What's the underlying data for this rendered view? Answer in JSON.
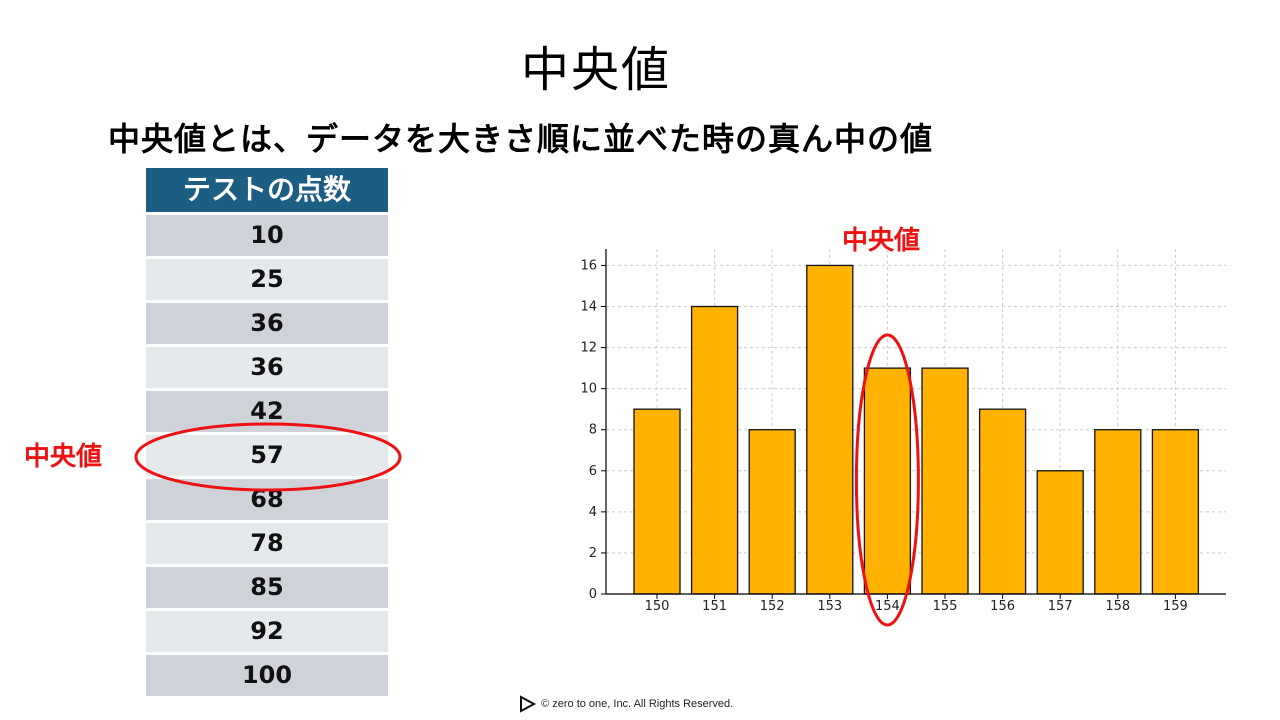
{
  "slide": {
    "title": "中央値",
    "subtitle": "中央値とは、データを大きさ順に並べた時の真ん中の値",
    "median_label": "中央値",
    "footer": "zero to one, Inc. All Rights Reserved.",
    "copyright_symbol": "©"
  },
  "table": {
    "header": "テストの点数",
    "rows": [
      "10",
      "25",
      "36",
      "36",
      "42",
      "57",
      "68",
      "78",
      "85",
      "92",
      "100"
    ],
    "highlighted_row_value": "57"
  },
  "colors": {
    "header_bg": "#1c5d82",
    "bar_fill": "#ffb300",
    "highlight": "#ee1111"
  },
  "chart_data": {
    "type": "bar",
    "categories": [
      "150",
      "151",
      "152",
      "153",
      "154",
      "155",
      "156",
      "157",
      "158",
      "159"
    ],
    "values": [
      9,
      14,
      8,
      16,
      11,
      11,
      9,
      6,
      8,
      8
    ],
    "ylim": [
      0,
      16.8
    ],
    "yticks": [
      "0",
      "2",
      "4",
      "6",
      "8",
      "10",
      "12",
      "14",
      "16"
    ],
    "grid": true,
    "highlighted_category": "154",
    "annotation": "中央値"
  }
}
